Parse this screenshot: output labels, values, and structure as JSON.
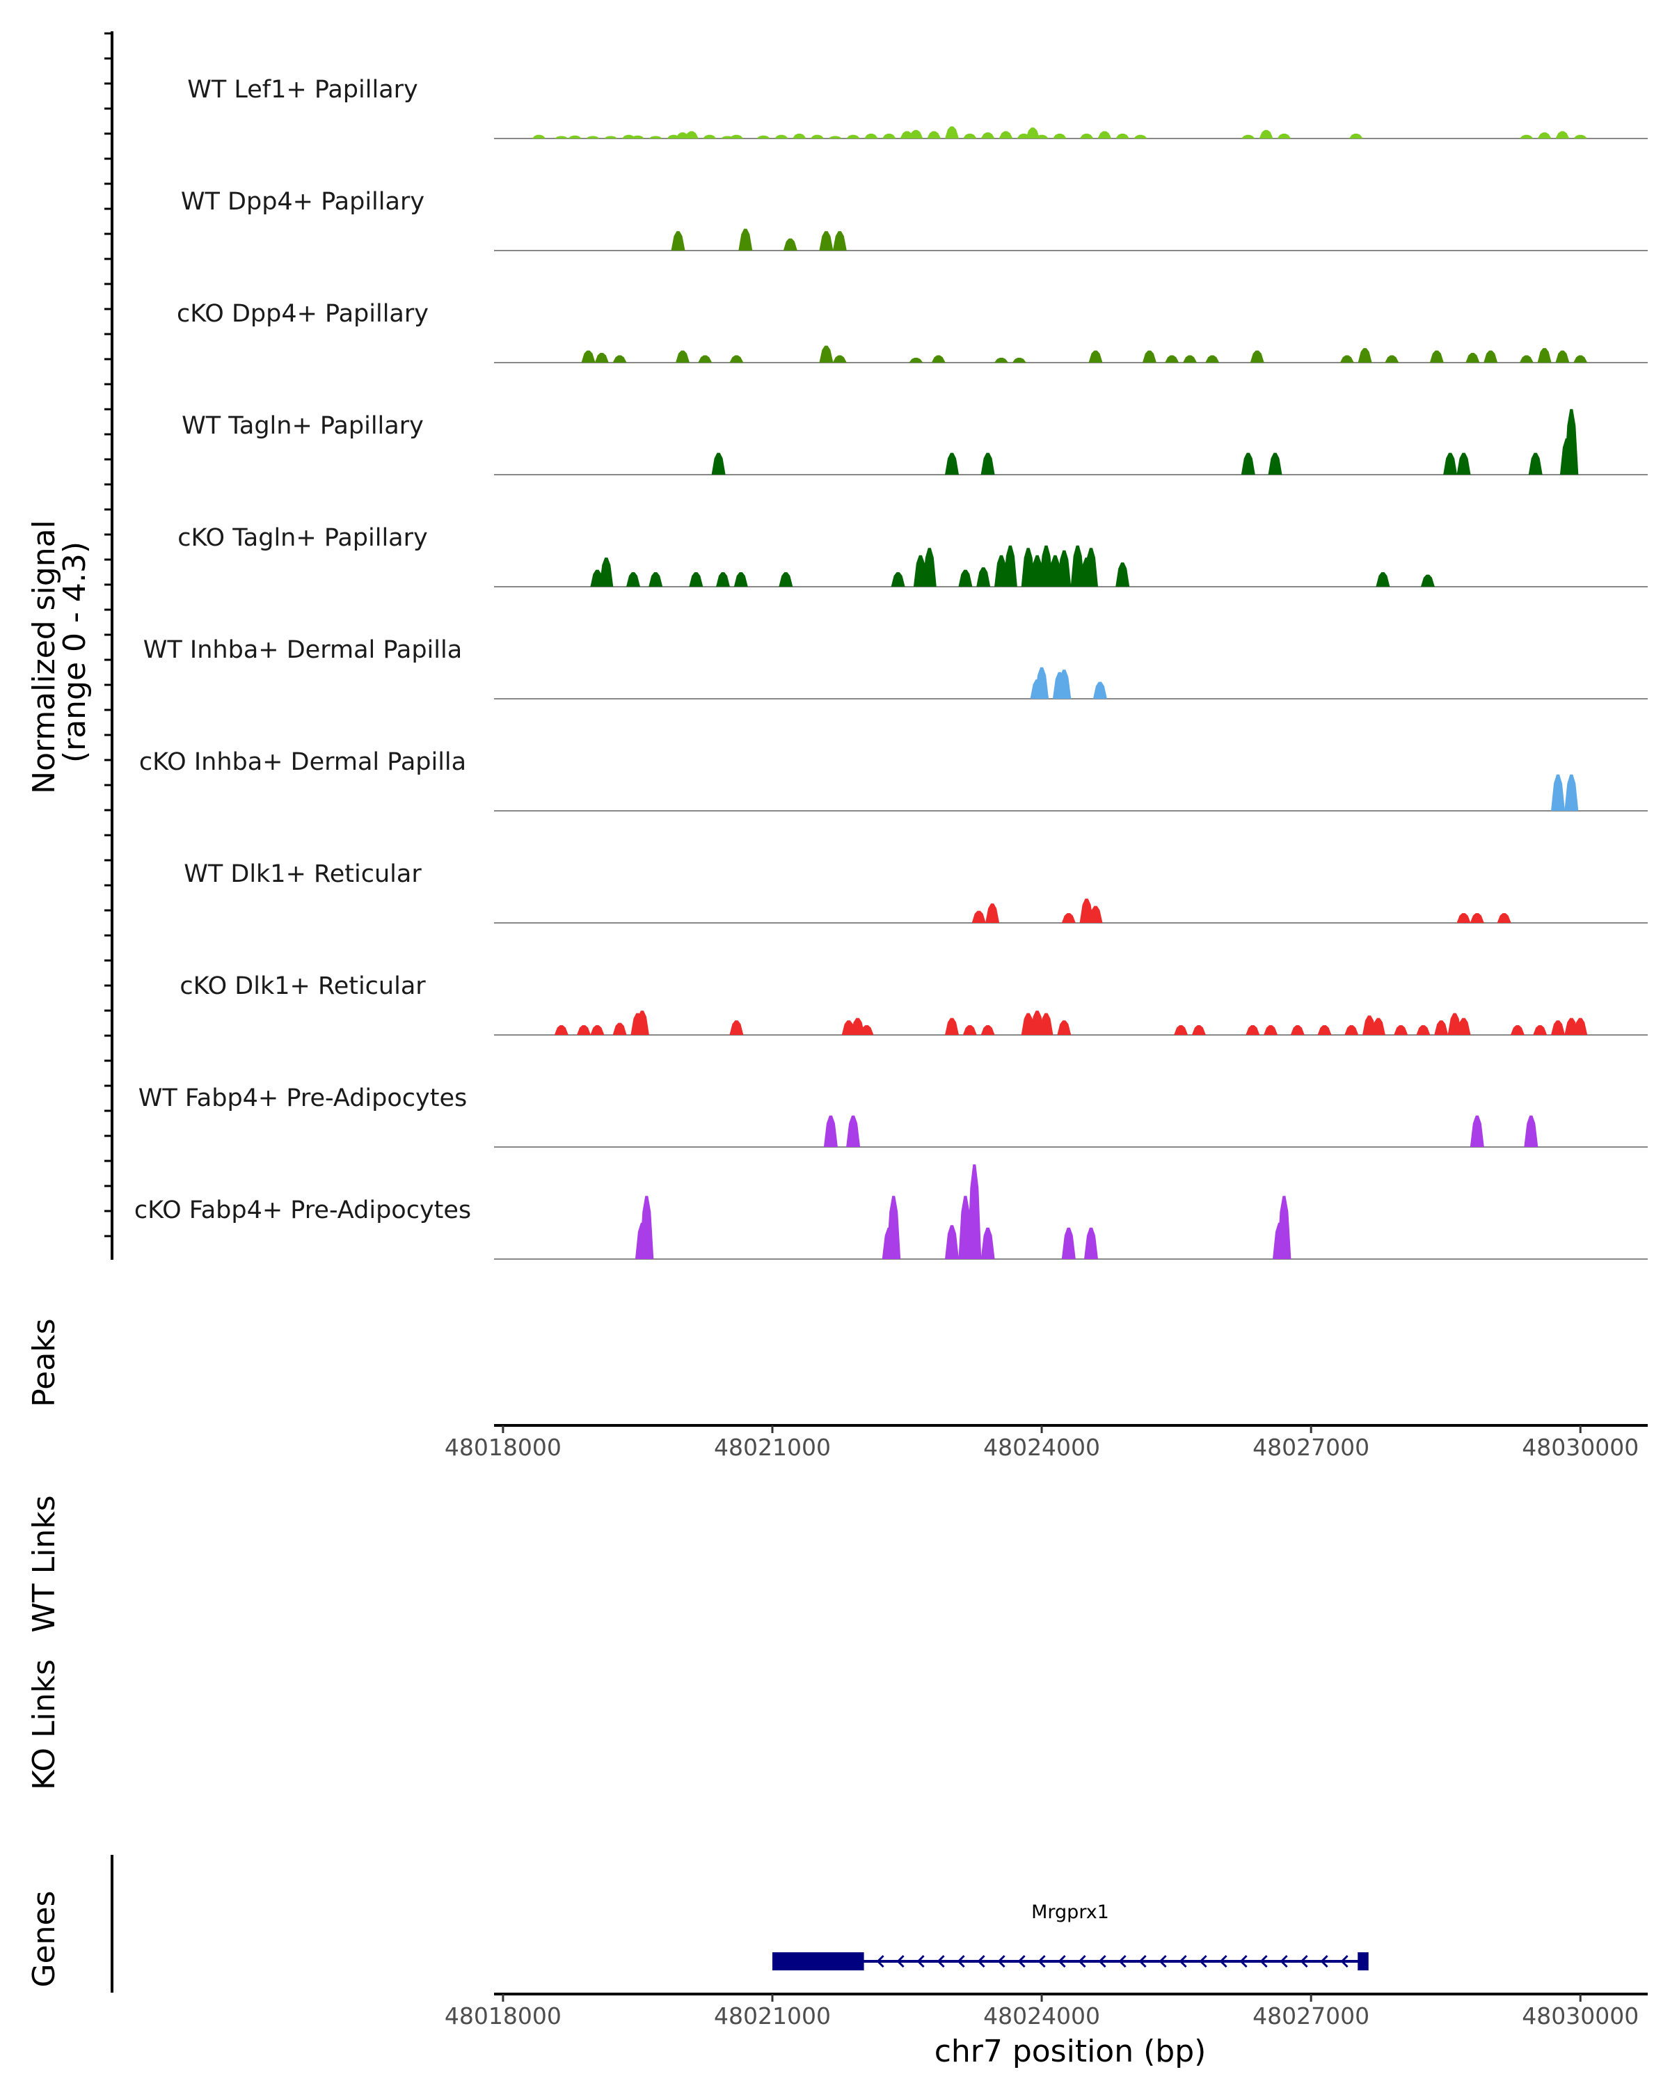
{
  "chart_data": {
    "type": "area",
    "region": {
      "chrom": "chr7",
      "start": 48017900,
      "end": 48030750
    },
    "ylabel_line1": "Normalized signal",
    "ylabel_line2": "(range 0 - 4.3)",
    "y_range": [
      0,
      4.3
    ],
    "tracks": [
      {
        "name": "WT Lef1+ Papillary",
        "color": "#7CCD1F",
        "x": [
          48018400,
          48018650,
          48018800,
          48019000,
          48019200,
          48019400,
          48019500,
          48019700,
          48019900,
          48020000,
          48020100,
          48020300,
          48020500,
          48020600,
          48020900,
          48021100,
          48021300,
          48021500,
          48021700,
          48021900,
          48022100,
          48022300,
          48022500,
          48022600,
          48022800,
          48023000,
          48023200,
          48023400,
          48023600,
          48023800,
          48023900,
          48024000,
          48024200,
          48024500,
          48024700,
          48024900,
          48025100,
          48026300,
          48026500,
          48026700,
          48027500,
          48029400,
          48029600,
          48029800,
          48030000
        ],
        "y": [
          0.15,
          0.1,
          0.12,
          0.1,
          0.1,
          0.15,
          0.12,
          0.1,
          0.15,
          0.25,
          0.3,
          0.15,
          0.1,
          0.15,
          0.12,
          0.15,
          0.2,
          0.15,
          0.1,
          0.15,
          0.2,
          0.2,
          0.3,
          0.35,
          0.3,
          0.5,
          0.2,
          0.25,
          0.3,
          0.2,
          0.45,
          0.15,
          0.2,
          0.2,
          0.3,
          0.2,
          0.15,
          0.15,
          0.35,
          0.2,
          0.2,
          0.15,
          0.25,
          0.3,
          0.15
        ]
      },
      {
        "name": "WT Dpp4+ Papillary",
        "color": "#4A8C00",
        "x": [
          48019950,
          48020700,
          48021200,
          48021600,
          48021750
        ],
        "y": [
          0.8,
          0.9,
          0.5,
          0.8,
          0.8
        ]
      },
      {
        "name": "cKO Dpp4+ Papillary",
        "color": "#4A8C00",
        "x": [
          48018950,
          48019100,
          48019300,
          48020000,
          48020250,
          48020600,
          48021600,
          48021750,
          48022600,
          48022850,
          48023550,
          48023750,
          48024600,
          48025200,
          48025450,
          48025650,
          48025900,
          48026400,
          48027400,
          48027600,
          48027900,
          48028400,
          48028800,
          48029000,
          48029400,
          48029600,
          48029800,
          48030000
        ],
        "y": [
          0.5,
          0.4,
          0.3,
          0.5,
          0.3,
          0.3,
          0.7,
          0.3,
          0.2,
          0.3,
          0.2,
          0.2,
          0.5,
          0.5,
          0.3,
          0.3,
          0.3,
          0.5,
          0.3,
          0.6,
          0.3,
          0.5,
          0.4,
          0.5,
          0.3,
          0.6,
          0.5,
          0.3
        ]
      },
      {
        "name": "WT Tagln+ Papillary",
        "color": "#006400",
        "x": [
          48020400,
          48023000,
          48023400,
          48026300,
          48026600,
          48028550,
          48028700,
          48029500,
          48029850,
          48029900
        ],
        "y": [
          0.9,
          0.9,
          0.9,
          0.9,
          0.9,
          0.9,
          0.9,
          0.9,
          1.5,
          2.7
        ]
      },
      {
        "name": "cKO Tagln+ Papillary",
        "color": "#006400",
        "x": [
          48019050,
          48019150,
          48019450,
          48019700,
          48020150,
          48020450,
          48020650,
          48021150,
          48022400,
          48022650,
          48022750,
          48023150,
          48023350,
          48023550,
          48023650,
          48023850,
          48023950,
          48024050,
          48024150,
          48024250,
          48024400,
          48024500,
          48024550,
          48024900,
          48027800,
          48028300
        ],
        "y": [
          0.7,
          1.2,
          0.6,
          0.6,
          0.6,
          0.6,
          0.6,
          0.6,
          0.6,
          1.3,
          1.6,
          0.7,
          0.8,
          1.3,
          1.7,
          1.6,
          1.3,
          1.7,
          1.3,
          1.5,
          1.7,
          1.2,
          1.6,
          1.0,
          0.6,
          0.5
        ]
      },
      {
        "name": "WT Inhba+ Dermal Papilla",
        "color": "#5EA9E8",
        "x": [
          48023950,
          48024000,
          48024200,
          48024250,
          48024650
        ],
        "y": [
          0.8,
          1.3,
          1.1,
          1.2,
          0.7
        ]
      },
      {
        "name": "cKO Inhba+ Dermal Papilla",
        "color": "#5EA9E8",
        "x": [
          48029750,
          48029900
        ],
        "y": [
          1.5,
          1.5
        ]
      },
      {
        "name": "WT Dlk1+ Reticular",
        "color": "#EE2A2A",
        "x": [
          48023300,
          48023450,
          48024300,
          48024500,
          48024600,
          48028700,
          48028850,
          48029150
        ],
        "y": [
          0.5,
          0.8,
          0.4,
          1.0,
          0.7,
          0.4,
          0.4,
          0.4
        ]
      },
      {
        "name": "cKO Dlk1+ Reticular",
        "color": "#EE2A2A",
        "x": [
          48018650,
          48018900,
          48019050,
          48019300,
          48019500,
          48019550,
          48020600,
          48021850,
          48021950,
          48022050,
          48023000,
          48023200,
          48023400,
          48023850,
          48023950,
          48024050,
          48024250,
          48025550,
          48025750,
          48026350,
          48026550,
          48026850,
          48027150,
          48027450,
          48027650,
          48027750,
          48028000,
          48028250,
          48028450,
          48028600,
          48028700,
          48029300,
          48029550,
          48029750,
          48029900,
          48030000
        ],
        "y": [
          0.4,
          0.4,
          0.4,
          0.5,
          0.9,
          1.0,
          0.6,
          0.6,
          0.7,
          0.4,
          0.7,
          0.4,
          0.4,
          0.9,
          1.0,
          0.9,
          0.6,
          0.4,
          0.4,
          0.4,
          0.4,
          0.4,
          0.4,
          0.4,
          0.8,
          0.7,
          0.4,
          0.4,
          0.6,
          0.9,
          0.7,
          0.4,
          0.4,
          0.6,
          0.7,
          0.7
        ]
      },
      {
        "name": "WT Fabp4+ Pre-Adipocytes",
        "color": "#A93DE8",
        "x": [
          48021650,
          48021900,
          48028850,
          48029450
        ],
        "y": [
          1.3,
          1.3,
          1.3,
          1.3
        ]
      },
      {
        "name": "cKO Fabp4+ Pre-Adipocytes",
        "color": "#A93DE8",
        "x": [
          48019550,
          48019600,
          48022300,
          48022350,
          48023000,
          48023150,
          48023250,
          48023400,
          48024300,
          48024550,
          48026650,
          48026700
        ],
        "y": [
          1.5,
          2.6,
          1.3,
          2.6,
          1.4,
          2.6,
          3.9,
          1.3,
          1.3,
          1.3,
          1.5,
          2.6
        ]
      }
    ],
    "peaks_title": "Peaks",
    "wt_links_title": "WT Links",
    "ko_links_title": "KO Links",
    "genes_title": "Genes",
    "x_ticks": [
      48018000,
      48021000,
      48024000,
      48027000,
      48030000
    ],
    "x_tick_labels": [
      "48018000",
      "48021000",
      "48024000",
      "48027000",
      "48030000"
    ],
    "xlabel": "chr7 position (bp)",
    "gene": {
      "name": "Mrgprx1",
      "strand": "-",
      "color": "#000080",
      "tx_start": 48021000,
      "tx_end": 48027600,
      "exons": [
        [
          48021000,
          48022020
        ],
        [
          48027520,
          48027640
        ]
      ]
    }
  }
}
